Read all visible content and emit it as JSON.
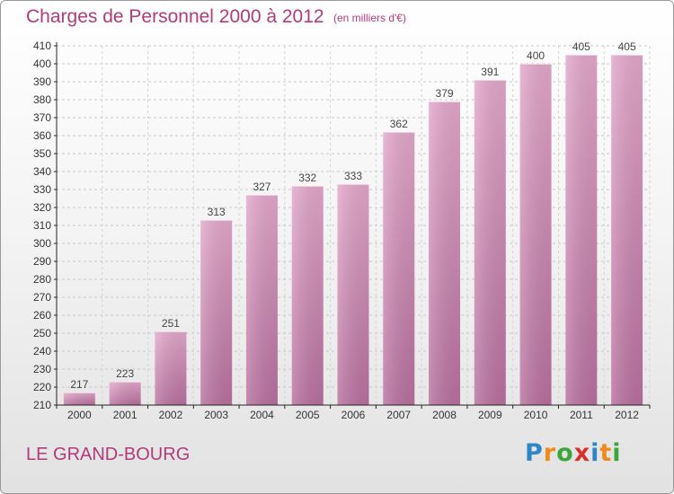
{
  "chart_data": {
    "type": "bar",
    "title": "Charges de Personnel 2000 à 2012",
    "subtitle": "(en milliers d'€)",
    "categories": [
      "2000",
      "2001",
      "2002",
      "2003",
      "2004",
      "2005",
      "2006",
      "2007",
      "2008",
      "2009",
      "2010",
      "2011",
      "2012"
    ],
    "values": [
      217,
      223,
      251,
      313,
      327,
      332,
      333,
      362,
      379,
      391,
      400,
      405,
      405
    ],
    "ylim": [
      210,
      410
    ],
    "yticks": [
      210,
      220,
      230,
      240,
      250,
      260,
      270,
      280,
      290,
      300,
      310,
      320,
      330,
      340,
      350,
      360,
      370,
      380,
      390,
      400,
      410
    ],
    "grid": true,
    "xlabel": "",
    "ylabel": "",
    "bar_color": "#d98cba",
    "label_color": "#444444"
  },
  "footer": {
    "commune": "LE GRAND-BOURG",
    "logo_letters": [
      "P",
      "r",
      "o",
      "x",
      "i",
      "t",
      "i"
    ],
    "logo_colors": [
      "#2e86c8",
      "#f08a1c",
      "#3aa63a",
      "#d8302a",
      "#2e86c8",
      "#f08a1c",
      "#3aa63a"
    ]
  }
}
